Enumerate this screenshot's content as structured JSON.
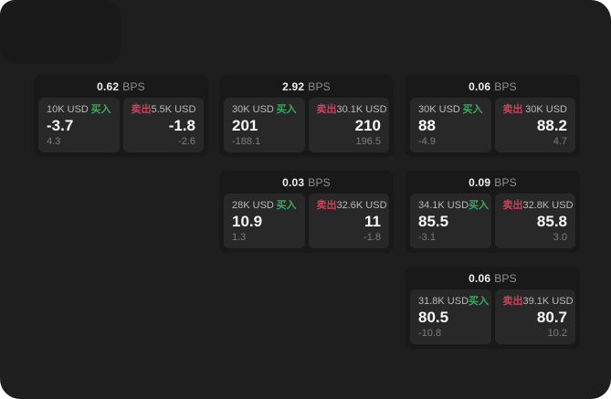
{
  "page": {
    "background_outer": "#ffffff",
    "background_panel": "#1e1e1e",
    "card_background": "#191919",
    "tile_background": "#282828",
    "buy_color": "#3aa860",
    "sell_color": "#c8435c",
    "value_color": "#f7f7f7",
    "muted_color": "#7d7d7d"
  },
  "labels": {
    "bps": "BPS",
    "buy": "买入",
    "sell": "卖出"
  },
  "cards": [
    {
      "col": 1,
      "row": 1,
      "bps": "0.62",
      "buy": {
        "amount": "10K USD",
        "value": "-3.7",
        "sub": "4.3"
      },
      "sell": {
        "amount": "5.5K USD",
        "value": "-1.8",
        "sub": "-2.6"
      }
    },
    {
      "col": 2,
      "row": 1,
      "bps": "2.92",
      "buy": {
        "amount": "30K USD",
        "value": "201",
        "sub": "-188.1"
      },
      "sell": {
        "amount": "30.1K USD",
        "value": "210",
        "sub": "196.5"
      }
    },
    {
      "col": 3,
      "row": 1,
      "bps": "0.06",
      "buy": {
        "amount": "30K USD",
        "value": "88",
        "sub": "-4.9"
      },
      "sell": {
        "amount": "30K USD",
        "value": "88.2",
        "sub": "4.7"
      }
    },
    {
      "col": 2,
      "row": 2,
      "bps": "0.03",
      "buy": {
        "amount": "28K USD",
        "value": "10.9",
        "sub": "1.3"
      },
      "sell": {
        "amount": "32.6K USD",
        "value": "11",
        "sub": "-1.8"
      }
    },
    {
      "col": 3,
      "row": 2,
      "bps": "0.09",
      "buy": {
        "amount": "34.1K USD",
        "value": "85.5",
        "sub": "-3.1"
      },
      "sell": {
        "amount": "32.8K USD",
        "value": "85.8",
        "sub": "3.0"
      }
    },
    {
      "col": 3,
      "row": 3,
      "bps": "0.06",
      "buy": {
        "amount": "31.8K USD",
        "value": "80.5",
        "sub": "-10.8"
      },
      "sell": {
        "amount": "39.1K USD",
        "value": "80.7",
        "sub": "10.2"
      }
    }
  ]
}
